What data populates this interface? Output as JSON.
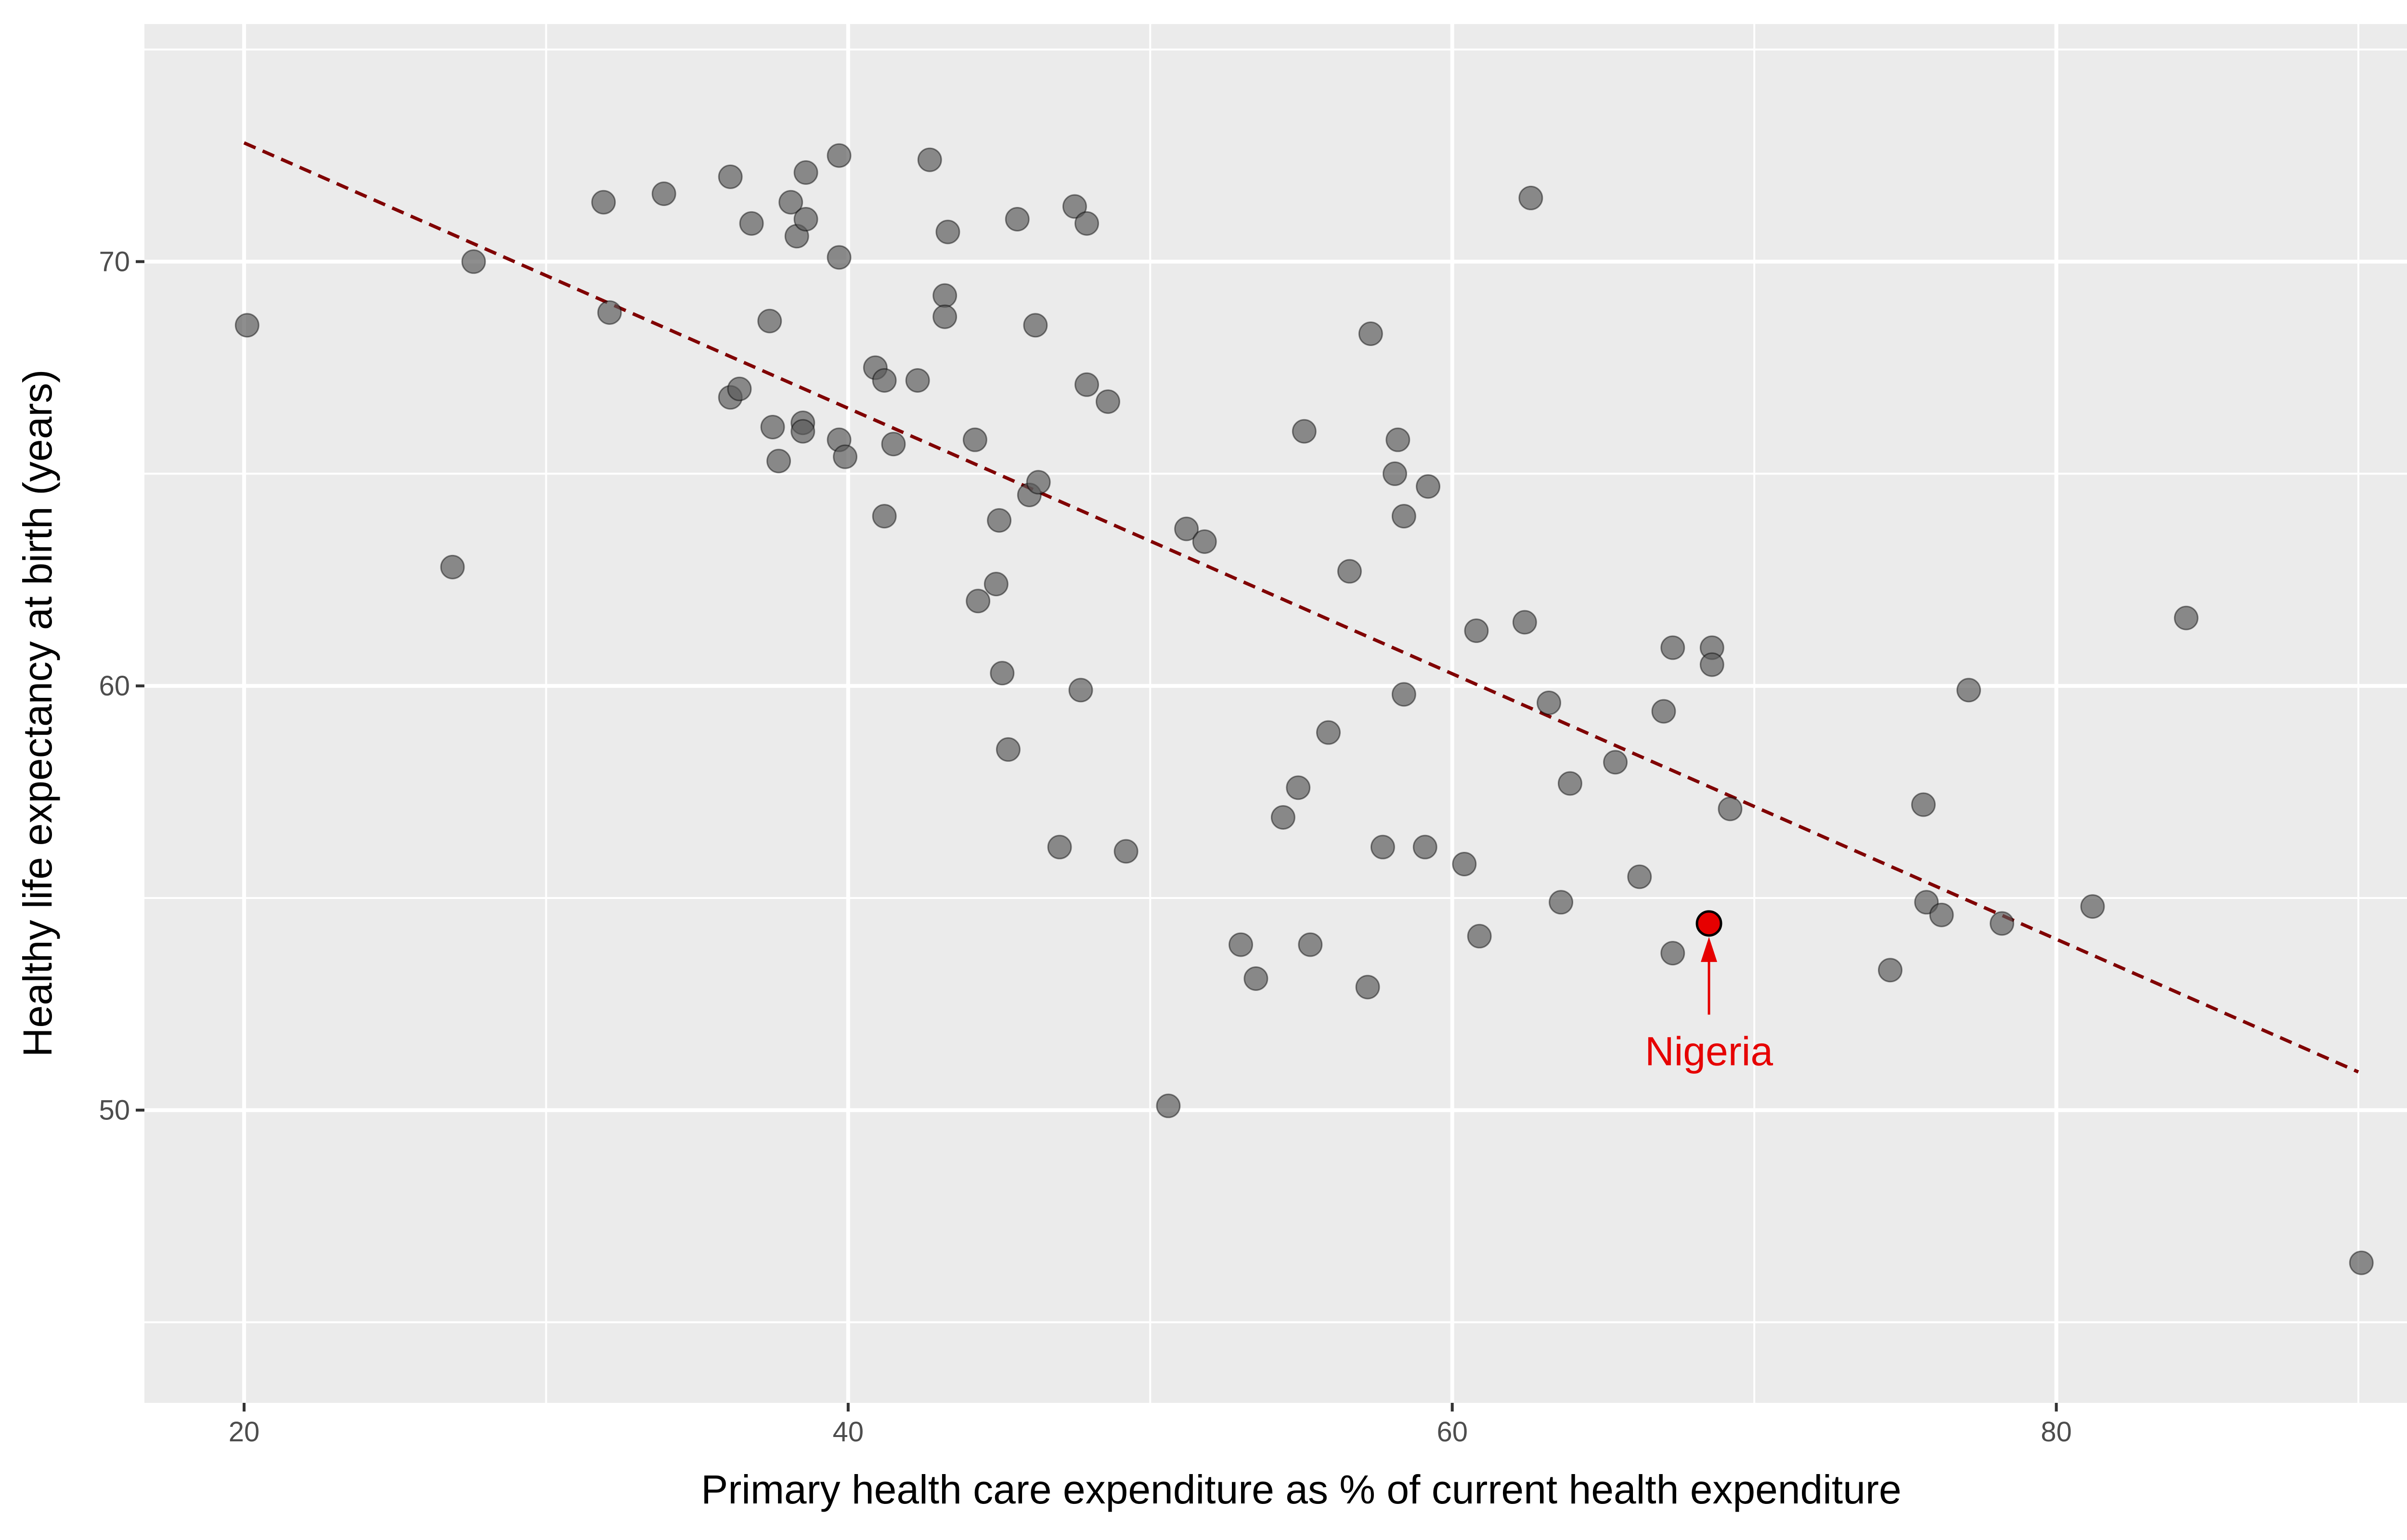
{
  "chart_data": {
    "type": "scatter",
    "title": "",
    "xlabel": "Primary health care expenditure as % of current health expenditure",
    "ylabel": "Healthy life expectancy at birth (years)",
    "xlim": [
      16.7,
      93.3
    ],
    "ylim": [
      43.1,
      75.6
    ],
    "x_ticks": [
      20,
      40,
      60,
      80
    ],
    "y_ticks": [
      50,
      60,
      70
    ],
    "x_minor": [
      30,
      50,
      70,
      90
    ],
    "y_minor": [
      45,
      55,
      65,
      75
    ],
    "grid": true,
    "point_color": "#595959",
    "points": [
      [
        20.1,
        68.5
      ],
      [
        26.9,
        62.8
      ],
      [
        27.6,
        70.0
      ],
      [
        31.9,
        71.4
      ],
      [
        32.1,
        68.8
      ],
      [
        33.9,
        71.6
      ],
      [
        36.1,
        72.0
      ],
      [
        36.1,
        66.8
      ],
      [
        36.4,
        67.0
      ],
      [
        36.8,
        70.9
      ],
      [
        37.4,
        68.6
      ],
      [
        37.5,
        66.1
      ],
      [
        37.7,
        65.3
      ],
      [
        38.1,
        71.4
      ],
      [
        38.3,
        70.6
      ],
      [
        38.5,
        66.2
      ],
      [
        38.5,
        66.0
      ],
      [
        38.6,
        71.0
      ],
      [
        38.6,
        72.1
      ],
      [
        39.7,
        72.5
      ],
      [
        39.7,
        70.1
      ],
      [
        39.7,
        65.8
      ],
      [
        39.9,
        65.4
      ],
      [
        40.9,
        67.5
      ],
      [
        41.2,
        67.2
      ],
      [
        41.2,
        64.0
      ],
      [
        41.5,
        65.7
      ],
      [
        42.3,
        67.2
      ],
      [
        42.7,
        72.4
      ],
      [
        43.2,
        69.2
      ],
      [
        43.2,
        68.7
      ],
      [
        43.3,
        70.7
      ],
      [
        44.2,
        65.8
      ],
      [
        44.3,
        62.0
      ],
      [
        44.9,
        62.4
      ],
      [
        45.0,
        63.9
      ],
      [
        45.1,
        60.3
      ],
      [
        45.3,
        58.5
      ],
      [
        45.6,
        71.0
      ],
      [
        46.0,
        64.5
      ],
      [
        46.2,
        68.5
      ],
      [
        46.3,
        64.8
      ],
      [
        47.0,
        56.2
      ],
      [
        47.5,
        71.3
      ],
      [
        47.7,
        59.9
      ],
      [
        47.9,
        67.1
      ],
      [
        47.9,
        70.9
      ],
      [
        48.6,
        66.7
      ],
      [
        49.2,
        56.1
      ],
      [
        50.6,
        50.1
      ],
      [
        51.2,
        63.7
      ],
      [
        51.8,
        63.4
      ],
      [
        53.0,
        53.9
      ],
      [
        53.5,
        53.1
      ],
      [
        54.4,
        56.9
      ],
      [
        54.9,
        57.6
      ],
      [
        55.1,
        66.0
      ],
      [
        55.3,
        53.9
      ],
      [
        55.9,
        58.9
      ],
      [
        56.6,
        62.7
      ],
      [
        57.2,
        52.9
      ],
      [
        57.3,
        68.3
      ],
      [
        57.7,
        56.2
      ],
      [
        58.1,
        65.0
      ],
      [
        58.2,
        65.8
      ],
      [
        58.4,
        64.0
      ],
      [
        58.4,
        59.8
      ],
      [
        59.1,
        56.2
      ],
      [
        59.2,
        64.7
      ],
      [
        60.4,
        55.8
      ],
      [
        60.8,
        61.3
      ],
      [
        60.9,
        54.1
      ],
      [
        62.4,
        61.5
      ],
      [
        62.6,
        71.5
      ],
      [
        63.2,
        59.6
      ],
      [
        63.6,
        54.9
      ],
      [
        63.9,
        57.7
      ],
      [
        65.4,
        58.2
      ],
      [
        66.2,
        55.5
      ],
      [
        67.0,
        59.4
      ],
      [
        67.3,
        60.9
      ],
      [
        67.3,
        53.7
      ],
      [
        68.6,
        60.9
      ],
      [
        68.6,
        60.5
      ],
      [
        69.2,
        57.1
      ],
      [
        74.5,
        53.3
      ],
      [
        75.6,
        57.2
      ],
      [
        75.7,
        54.9
      ],
      [
        76.2,
        54.6
      ],
      [
        77.1,
        59.9
      ],
      [
        78.2,
        54.4
      ],
      [
        81.2,
        54.8
      ],
      [
        84.3,
        61.6
      ],
      [
        90.1,
        46.4
      ]
    ],
    "trend_line": {
      "style": "dashed",
      "color": "#800000",
      "x": [
        20.0,
        90.0
      ],
      "y": [
        72.8,
        50.9
      ]
    },
    "highlight": {
      "label": "Nigeria",
      "x": 68.5,
      "y": 54.4,
      "label_x": 68.5,
      "label_y": 51.4,
      "color": "#e60000"
    }
  }
}
